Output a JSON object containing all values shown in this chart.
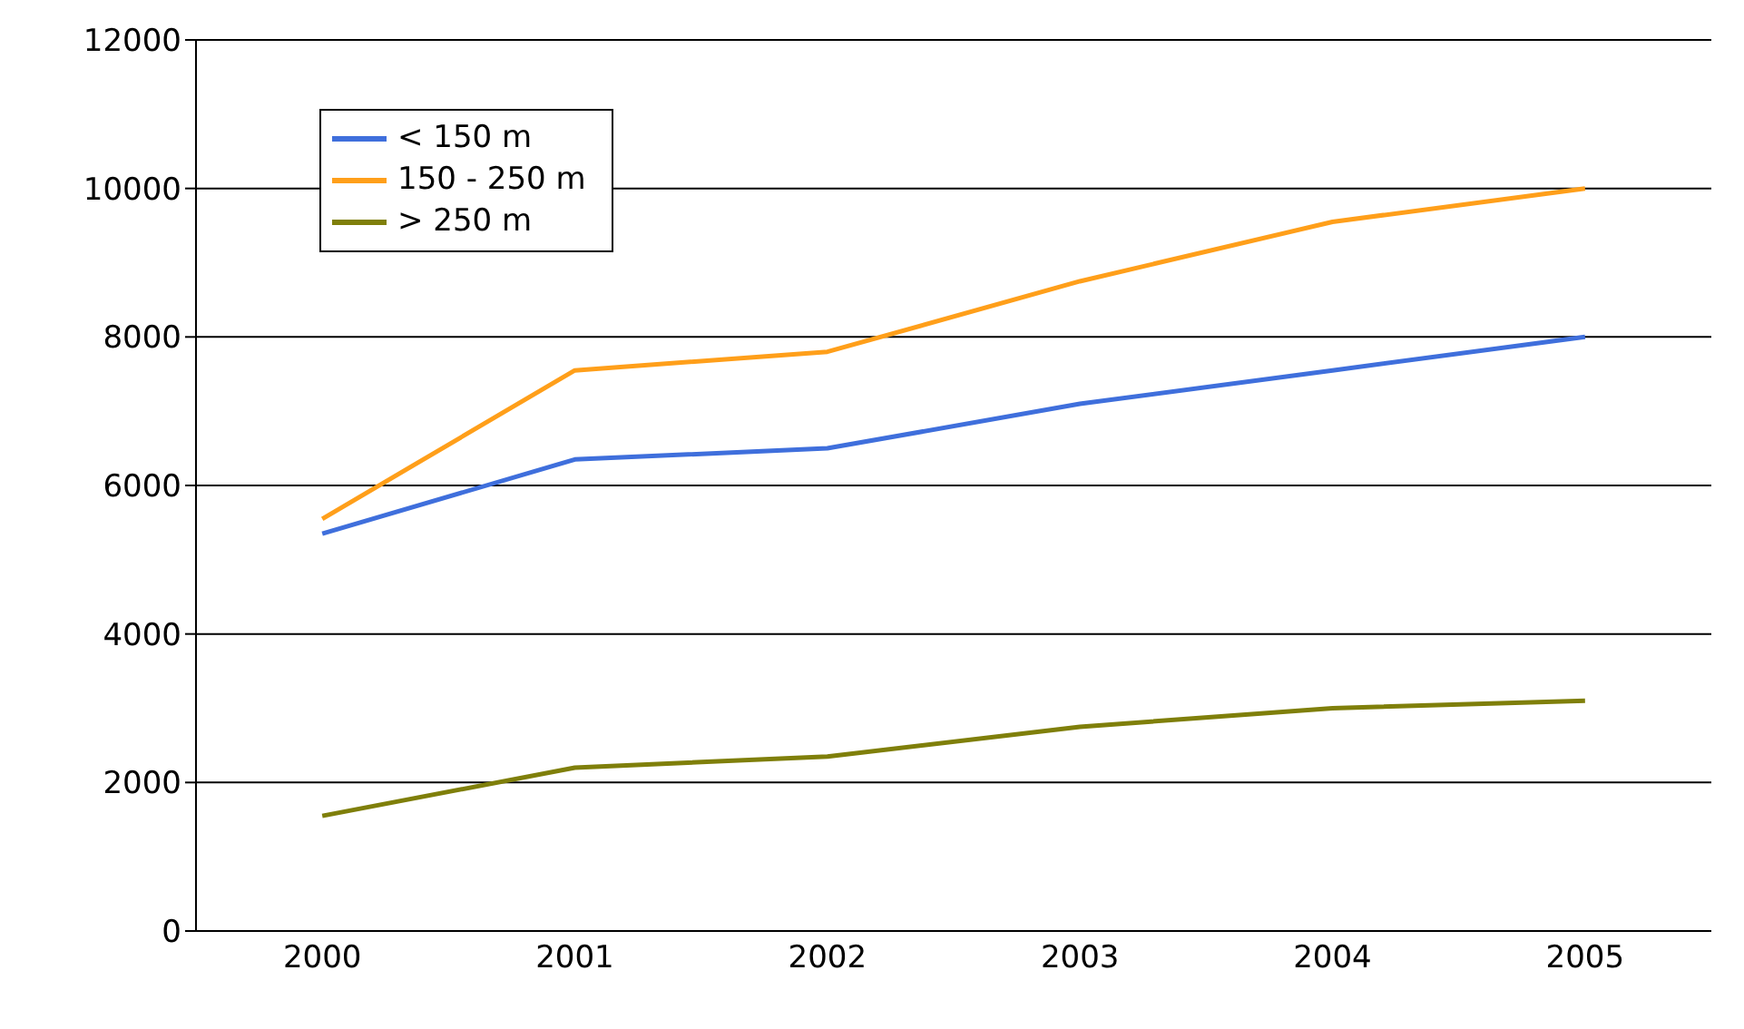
{
  "chart_data": {
    "type": "line",
    "categories": [
      "2000",
      "2001",
      "2002",
      "2003",
      "2004",
      "2005"
    ],
    "series": [
      {
        "name": "< 150 m",
        "color": "#3f6fdc",
        "values": [
          5350,
          6350,
          6500,
          7100,
          7550,
          8000
        ]
      },
      {
        "name": "150 - 250 m",
        "color": "#ff9f1a",
        "values": [
          5550,
          7550,
          7800,
          8750,
          9550,
          10000
        ]
      },
      {
        "name": "> 250 m",
        "color": "#7f7f0a",
        "values": [
          1550,
          2200,
          2350,
          2750,
          3000,
          3100
        ]
      }
    ],
    "ylim": [
      0,
      12000
    ],
    "yticks": [
      0,
      2000,
      4000,
      6000,
      8000,
      10000,
      12000
    ],
    "grid": "y",
    "legend": "top left",
    "marker": "none",
    "line_style": "solid"
  }
}
